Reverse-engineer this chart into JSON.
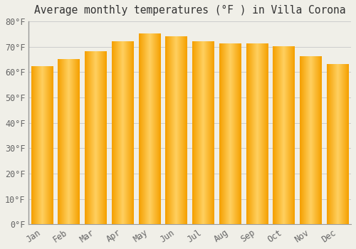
{
  "title": "Average monthly temperatures (°F ) in Villa Corona",
  "months": [
    "Jan",
    "Feb",
    "Mar",
    "Apr",
    "May",
    "Jun",
    "Jul",
    "Aug",
    "Sep",
    "Oct",
    "Nov",
    "Dec"
  ],
  "values": [
    62,
    65,
    68,
    72,
    75,
    74,
    72,
    71,
    71,
    70,
    66,
    63
  ],
  "bar_color_center": "#FFD060",
  "bar_color_edge": "#F5A000",
  "background_color": "#F0EFE8",
  "grid_color": "#CCCCCC",
  "ylim": [
    0,
    80
  ],
  "yticks": [
    0,
    10,
    20,
    30,
    40,
    50,
    60,
    70,
    80
  ],
  "ytick_labels": [
    "0°F",
    "10°F",
    "20°F",
    "30°F",
    "40°F",
    "50°F",
    "60°F",
    "70°F",
    "80°F"
  ],
  "title_fontsize": 10.5,
  "tick_fontsize": 8.5,
  "font_family": "monospace",
  "bar_width": 0.82
}
